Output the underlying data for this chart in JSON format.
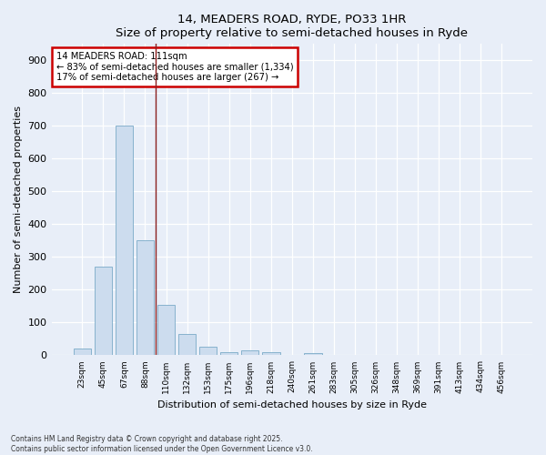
{
  "title": "14, MEADERS ROAD, RYDE, PO33 1HR",
  "subtitle": "Size of property relative to semi-detached houses in Ryde",
  "xlabel": "Distribution of semi-detached houses by size in Ryde",
  "ylabel": "Number of semi-detached properties",
  "categories": [
    "23sqm",
    "45sqm",
    "67sqm",
    "88sqm",
    "110sqm",
    "132sqm",
    "153sqm",
    "175sqm",
    "196sqm",
    "218sqm",
    "240sqm",
    "261sqm",
    "283sqm",
    "305sqm",
    "326sqm",
    "348sqm",
    "369sqm",
    "391sqm",
    "413sqm",
    "434sqm",
    "456sqm"
  ],
  "values": [
    20,
    270,
    700,
    350,
    155,
    65,
    25,
    10,
    15,
    10,
    0,
    8,
    0,
    0,
    0,
    0,
    0,
    0,
    0,
    0,
    0
  ],
  "bar_color": "#ccdcee",
  "bar_edge_color": "#7aaac8",
  "vline_x_index": 4,
  "vline_color": "#8b2020",
  "annotation_title": "14 MEADERS ROAD: 111sqm",
  "annotation_line1": "← 83% of semi-detached houses are smaller (1,334)",
  "annotation_line2": "17% of semi-detached houses are larger (267) →",
  "annotation_box_facecolor": "#ffffff",
  "annotation_box_edgecolor": "#cc0000",
  "ylim": [
    0,
    950
  ],
  "yticks": [
    0,
    100,
    200,
    300,
    400,
    500,
    600,
    700,
    800,
    900
  ],
  "bg_color": "#e8eef8",
  "footnote1": "Contains HM Land Registry data © Crown copyright and database right 2025.",
  "footnote2": "Contains public sector information licensed under the Open Government Licence v3.0."
}
